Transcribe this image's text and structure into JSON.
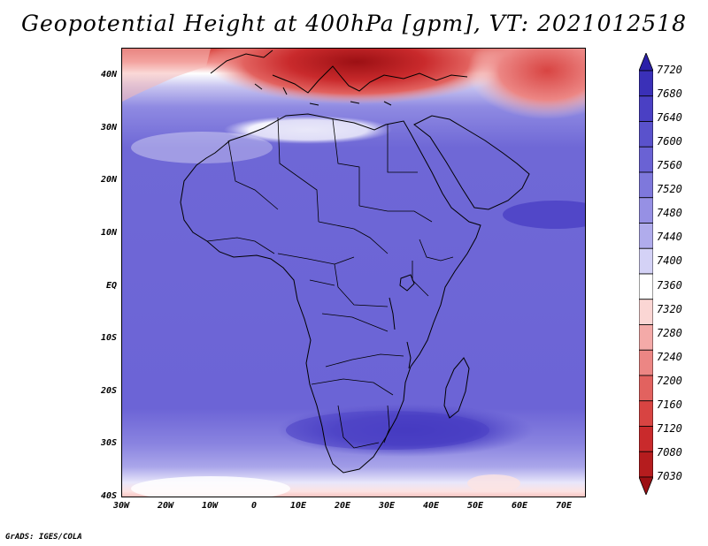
{
  "title": "Geopotential Height at 400hPa [gpm], VT: 2021012518",
  "credit": "GrADS: IGES/COLA",
  "colors": {
    "frame": "#000000",
    "coast": "#000000",
    "land_tint": "#6a62d8"
  },
  "map": {
    "lon_range": [
      -30,
      75
    ],
    "lat_range": [
      -40,
      45
    ],
    "lat_ticks": [
      "40N",
      "30N",
      "20N",
      "10N",
      "EQ",
      "10S",
      "20S",
      "30S",
      "40S"
    ],
    "lon_ticks": [
      "30W",
      "20W",
      "10W",
      "0",
      "10E",
      "20E",
      "30E",
      "40E",
      "50E",
      "60E",
      "70E"
    ]
  },
  "colorbar": {
    "levels": [
      "7720",
      "7680",
      "7640",
      "7600",
      "7560",
      "7520",
      "7480",
      "7440",
      "7400",
      "7360",
      "7320",
      "7280",
      "7240",
      "7200",
      "7160",
      "7120",
      "7080",
      "7030"
    ],
    "colors": [
      "#2b20a8",
      "#3a30b8",
      "#4a40c4",
      "#5a52cc",
      "#6a62d4",
      "#7e78dc",
      "#9690e4",
      "#b0acec",
      "#d4d2f6",
      "#ffffff",
      "#fbd6d4",
      "#f4aaa8",
      "#ec8684",
      "#e2625f",
      "#d84442",
      "#c92a2c",
      "#b51c1e",
      "#9c1014"
    ]
  }
}
